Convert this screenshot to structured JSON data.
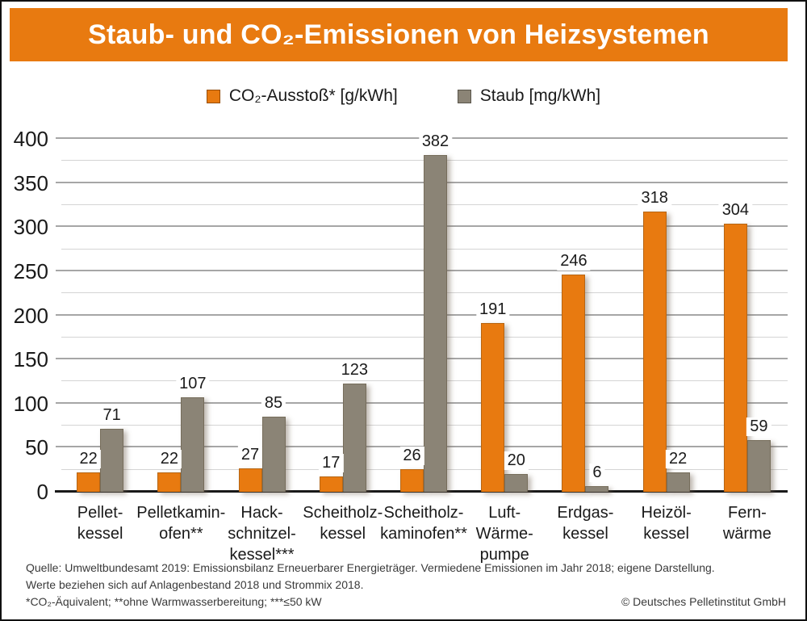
{
  "header": {
    "title": "Staub- und CO₂-Emissionen von Heizsystemen",
    "background_color": "#e87a10",
    "text_color": "#ffffff"
  },
  "chart_data": {
    "type": "bar",
    "title": "Staub- und CO₂-Emissionen von Heizsystemen",
    "categories": [
      "Pellet-kessel",
      "Pelletkamin-ofen**",
      "Hack-schnitzel-kessel***",
      "Scheitholz-kessel",
      "Scheitholz-kaminofen**",
      "Luft-Wärme-pumpe",
      "Erdgas-kessel",
      "Heizöl-kessel",
      "Fern-wärme"
    ],
    "category_lines": [
      [
        "Pellet-",
        "kessel"
      ],
      [
        "Pelletkamin-",
        "ofen**"
      ],
      [
        "Hack-",
        "schnitzel-",
        "kessel***"
      ],
      [
        "Scheitholz-",
        "kessel"
      ],
      [
        "Scheitholz-",
        "kaminofen**"
      ],
      [
        "Luft-",
        "Wärme-",
        "pumpe"
      ],
      [
        "Erdgas-",
        "kessel"
      ],
      [
        "Heizöl-",
        "kessel"
      ],
      [
        "Fern-",
        "wärme"
      ]
    ],
    "series": [
      {
        "name": "CO₂-Ausstoß* [g/kWh]",
        "color": "#e87a10",
        "values": [
          22,
          22,
          27,
          17,
          26,
          191,
          246,
          318,
          304
        ]
      },
      {
        "name": "Staub [mg/kWh]",
        "color": "#8b8476",
        "values": [
          71,
          107,
          85,
          123,
          382,
          20,
          6,
          22,
          59
        ]
      }
    ],
    "xlabel": "",
    "ylabel": "",
    "ylim": [
      0,
      400
    ],
    "y_tick_labels": [
      "0",
      "50",
      "100",
      "150",
      "200",
      "250",
      "300",
      "350",
      "400"
    ],
    "y_major_step": 50,
    "y_minor_step": 25,
    "grid": true,
    "legend_position": "top"
  },
  "footer": {
    "line1": "Quelle: Umweltbundesamt 2019: Emissionsbilanz Erneuerbarer Energieträger. Vermiedene Emissionen im Jahr 2018; eigene Darstellung.",
    "line2": "Werte beziehen sich auf Anlagenbestand 2018 und Strommix 2018.",
    "line3": "*CO₂-Äquivalent; **ohne Warmwasserbereitung; ***≤50 kW",
    "copyright": "© Deutsches Pelletinstitut GmbH"
  }
}
